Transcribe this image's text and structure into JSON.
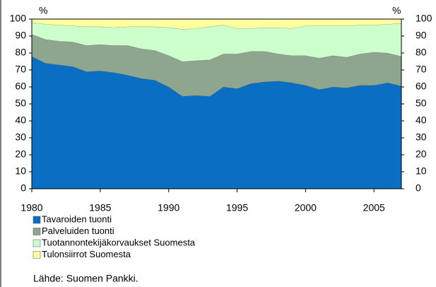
{
  "chart_data": {
    "type": "stacked_area",
    "y_unit_left": "%",
    "y_unit_right": "%",
    "x": [
      1980,
      1981,
      1982,
      1983,
      1984,
      1985,
      1986,
      1987,
      1988,
      1989,
      1990,
      1991,
      1992,
      1993,
      1994,
      1995,
      1996,
      1997,
      1998,
      1999,
      2000,
      2001,
      2002,
      2003,
      2004,
      2005,
      2006,
      2007
    ],
    "xlim": [
      1980,
      2007
    ],
    "xticks": [
      1980,
      1985,
      1990,
      1995,
      2000,
      2005
    ],
    "ylim": [
      0,
      100
    ],
    "yticks": [
      0,
      10,
      20,
      30,
      40,
      50,
      60,
      70,
      80,
      90,
      100
    ],
    "series": [
      {
        "name": "Tavaroiden tuonti",
        "color": "#0a6fc2",
        "values": [
          78,
          74,
          73,
          72,
          69,
          69.5,
          68.5,
          67,
          65,
          64,
          60,
          54.5,
          55,
          54.5,
          60,
          59,
          62,
          63,
          63.5,
          62.5,
          61,
          58.5,
          60,
          59.5,
          61,
          61,
          62.5,
          60.5
        ]
      },
      {
        "name": "Palveluiden tuonti",
        "color": "#8ea58e",
        "values": [
          13,
          14,
          14,
          14.5,
          15.5,
          15.5,
          16,
          17.5,
          17.5,
          17.5,
          18.5,
          20.5,
          20.5,
          21.5,
          19.5,
          20.5,
          19,
          18,
          16,
          16,
          17.5,
          18.5,
          18.5,
          18,
          18.5,
          19.5,
          17.5,
          17.5
        ]
      },
      {
        "name": "Tuotannontekijäkorvaukset Suomesta",
        "color": "#ccffcc",
        "values": [
          7,
          9,
          9.5,
          9.5,
          11,
          10.5,
          10.5,
          11,
          13,
          14,
          16.5,
          19,
          19,
          19.5,
          17,
          15,
          13.5,
          14,
          15.5,
          16,
          17.5,
          19,
          17.5,
          18.5,
          17,
          16,
          17,
          19.5
        ]
      },
      {
        "name": "Tulonsiirrot Suomesta",
        "color": "#ffffa0",
        "values": [
          2,
          3,
          3.5,
          4,
          4.5,
          4.5,
          5,
          4.5,
          4.5,
          4.5,
          5,
          6,
          5.5,
          4.5,
          3.5,
          5.5,
          5.5,
          5,
          5,
          5.5,
          4,
          4,
          4,
          4,
          3.5,
          3.5,
          3,
          2.5
        ]
      }
    ],
    "source": "Lähde: Suomen Pankki."
  }
}
